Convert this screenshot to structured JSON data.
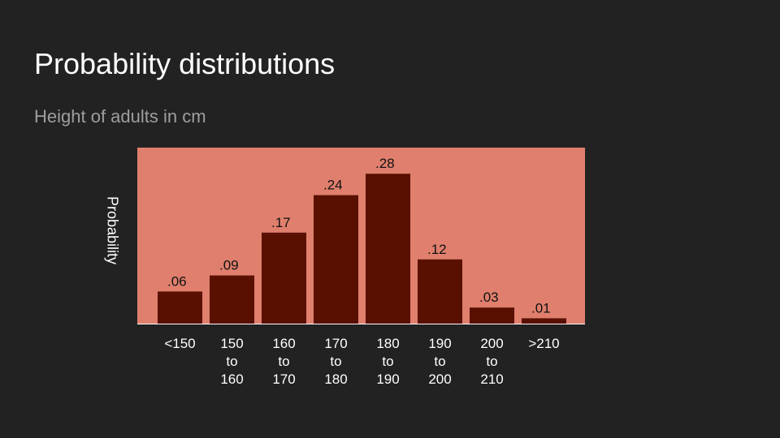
{
  "slide": {
    "title": "Probability distributions",
    "subtitle": "Height of adults in cm"
  },
  "colors": {
    "background": "#222222",
    "plot_background": "#e07f6d",
    "bar": "#5a1000",
    "axis": "#ffffff",
    "label_text": "#111111",
    "tick_text": "#ffffff"
  },
  "chart_data": {
    "type": "bar",
    "title": "",
    "xlabel": "",
    "ylabel": "Probability",
    "categories": [
      [
        "<150"
      ],
      [
        "150",
        "to",
        "160"
      ],
      [
        "160",
        "to",
        "170"
      ],
      [
        "170",
        "to",
        "180"
      ],
      [
        "180",
        "to",
        "190"
      ],
      [
        "190",
        "to",
        "200"
      ],
      [
        "200",
        "to",
        "210"
      ],
      [
        ">210"
      ]
    ],
    "values": [
      0.06,
      0.09,
      0.17,
      0.24,
      0.28,
      0.12,
      0.03,
      0.01
    ],
    "data_labels": [
      ".06",
      ".09",
      ".17",
      ".24",
      ".28",
      ".12",
      ".03",
      ".01"
    ],
    "ylim": [
      0,
      0.33
    ],
    "grid": false,
    "legend": "none"
  }
}
